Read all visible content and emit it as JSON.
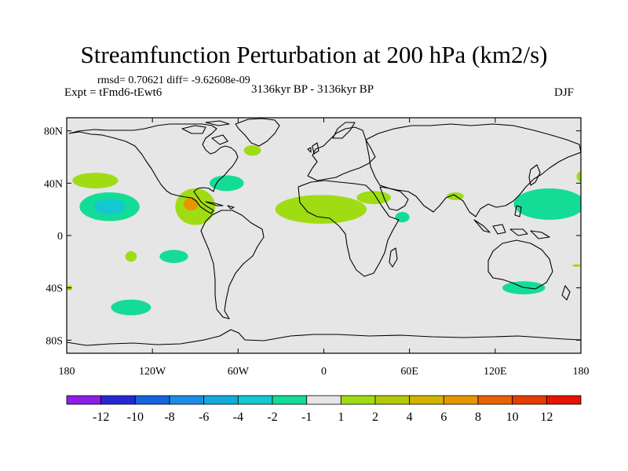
{
  "title": "Streamfunction Perturbation at 200 hPa (km2/s)",
  "stats_text": "rmsd= 0.70621  diff= -9.62608e-09",
  "expt_text": "Expt = tFmd6-tEwt6",
  "period_text": "3136kyr BP - 3136kyr BP",
  "season_text": "DJF",
  "lon_ticks": [
    {
      "value": -180,
      "label": "180"
    },
    {
      "value": -120,
      "label": "120W"
    },
    {
      "value": -60,
      "label": "60W"
    },
    {
      "value": 0,
      "label": "0"
    },
    {
      "value": 60,
      "label": "60E"
    },
    {
      "value": 120,
      "label": "120E"
    },
    {
      "value": 180,
      "label": "180"
    }
  ],
  "lat_ticks": [
    {
      "value": 80,
      "label": "80N"
    },
    {
      "value": 40,
      "label": "40N"
    },
    {
      "value": 0,
      "label": "0"
    },
    {
      "value": -40,
      "label": "40S"
    },
    {
      "value": -80,
      "label": "80S"
    }
  ],
  "colorbar": {
    "colors": [
      "#8c1ee6",
      "#2828d2",
      "#1464dc",
      "#1e8ce6",
      "#14aadc",
      "#14c8d2",
      "#14dc96",
      "#e6e6e6",
      "#a0dc14",
      "#b4c80a",
      "#d2b400",
      "#e69600",
      "#e66400",
      "#e63c00",
      "#e61400"
    ],
    "labels": [
      "-12",
      "-10",
      "-8",
      "-6",
      "-4",
      "-2",
      "-1",
      "1",
      "2",
      "4",
      "6",
      "8",
      "10",
      "12"
    ]
  },
  "anomalies": [
    {
      "name": "north-pacific-west-pos",
      "lon": -160,
      "lat": 42,
      "rx": 16,
      "ry": 6,
      "level": "2"
    },
    {
      "name": "central-pacific-neg",
      "lon": -150,
      "lat": 22,
      "rx": 21,
      "ry": 11,
      "level": "-2"
    },
    {
      "name": "central-pacific-neg-core",
      "lon": -150,
      "lat": 22,
      "rx": 11,
      "ry": 6,
      "level": "-4"
    },
    {
      "name": "gulf-of-mexico-pos",
      "lon": -90,
      "lat": 22,
      "rx": 14,
      "ry": 14,
      "level": "2"
    },
    {
      "name": "gulf-of-mexico-pos-core",
      "lon": -93,
      "lat": 24,
      "rx": 5,
      "ry": 5,
      "level": "6"
    },
    {
      "name": "north-atlantic-neg",
      "lon": -68,
      "lat": 40,
      "rx": 12,
      "ry": 6,
      "level": "-1"
    },
    {
      "name": "greenland-pos",
      "lon": -50,
      "lat": 65,
      "rx": 6,
      "ry": 4,
      "level": "2"
    },
    {
      "name": "east-atlantic-africa-pos",
      "lon": -2,
      "lat": 20,
      "rx": 32,
      "ry": 11,
      "level": "2"
    },
    {
      "name": "north-africa-pos-east",
      "lon": 35,
      "lat": 29,
      "rx": 12,
      "ry": 5,
      "level": "2"
    },
    {
      "name": "middle-east-pos",
      "lon": 92,
      "lat": 30,
      "rx": 6,
      "ry": 3,
      "level": "2"
    },
    {
      "name": "arabian-sea-neg",
      "lon": 55,
      "lat": 14,
      "rx": 5,
      "ry": 4,
      "level": "-1"
    },
    {
      "name": "west-pacific-neg",
      "lon": 158,
      "lat": 24,
      "rx": 25,
      "ry": 12,
      "level": "-1"
    },
    {
      "name": "dateline-east-pos",
      "lon": 180,
      "lat": 45,
      "rx": 3,
      "ry": 4,
      "level": "2"
    },
    {
      "name": "south-pacific-pos-small",
      "lon": -135,
      "lat": -16,
      "rx": 4,
      "ry": 4,
      "level": "2"
    },
    {
      "name": "south-pacific-neg",
      "lon": -105,
      "lat": -16,
      "rx": 10,
      "ry": 5,
      "level": "-1"
    },
    {
      "name": "far-south-pacific-neg",
      "lon": -135,
      "lat": -55,
      "rx": 14,
      "ry": 6,
      "level": "-1"
    },
    {
      "name": "australia-south-neg",
      "lon": 140,
      "lat": -40,
      "rx": 15,
      "ry": 5,
      "level": "-1"
    },
    {
      "name": "australia-east-pos",
      "lon": 177,
      "lat": -23,
      "rx": 3,
      "ry": 1,
      "level": "2"
    },
    {
      "name": "west-edge-pos",
      "lon": -178,
      "lat": -40,
      "rx": 2,
      "ry": 2,
      "level": "2"
    }
  ]
}
